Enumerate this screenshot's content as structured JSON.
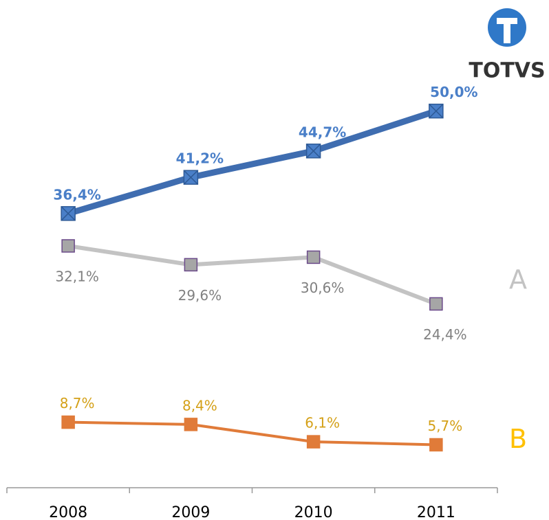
{
  "chart_data": {
    "type": "line",
    "logo": "TOTVS",
    "categories": [
      "2008",
      "2009",
      "2010",
      "2011"
    ],
    "ylim": [
      0,
      60
    ],
    "series": [
      {
        "color": "#3f6db0",
        "label_color": "#4a7fc8",
        "label_position": "above",
        "marker": "cross",
        "values": [
          36.4,
          41.2,
          44.7,
          50.0
        ],
        "value_labels": [
          "36,4%",
          "41,2%",
          "44,7%",
          "50,0%"
        ]
      },
      {
        "name": "A",
        "color": "#c3c3c3",
        "label_color": "#808080",
        "label_position": "below",
        "marker": "square",
        "values": [
          32.1,
          29.6,
          30.6,
          24.4
        ],
        "value_labels": [
          "32,1%",
          "29,6%",
          "30,6%",
          "24,4%"
        ]
      },
      {
        "name": "B",
        "color": "#e07b39",
        "label_color": "#d4a017",
        "name_color": "#ffc000",
        "label_position": "above",
        "marker": "square",
        "values": [
          8.7,
          8.4,
          6.1,
          5.7
        ],
        "value_labels": [
          "8,7%",
          "8,4%",
          "6,1%",
          "5,7%"
        ]
      }
    ]
  }
}
